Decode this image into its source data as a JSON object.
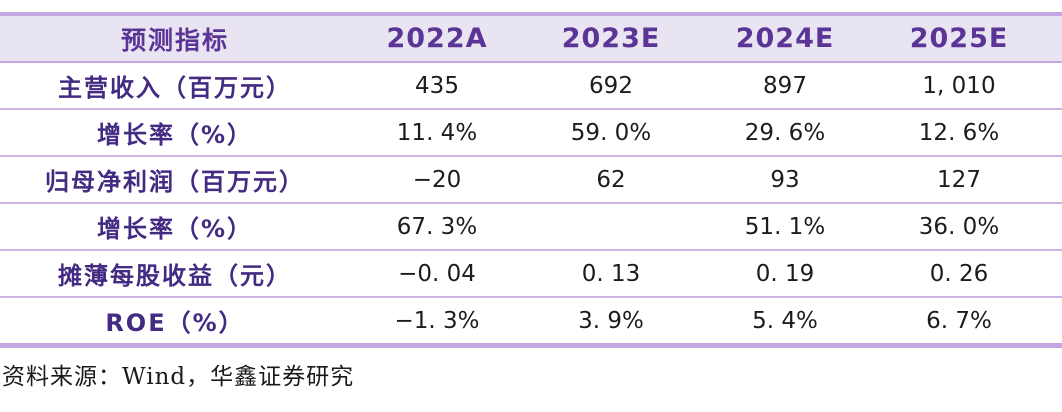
{
  "table": {
    "columns": [
      "预测指标",
      "2022A",
      "2023E",
      "2024E",
      "2025E"
    ],
    "rows": [
      {
        "label": "主营收入（百万元）",
        "values": [
          "435",
          "692",
          "897",
          "1, 010"
        ]
      },
      {
        "label": "增长率（%）",
        "values": [
          "11. 4%",
          "59. 0%",
          "29. 6%",
          "12. 6%"
        ]
      },
      {
        "label": "归母净利润（百万元）",
        "values": [
          "−20",
          "62",
          "93",
          "127"
        ]
      },
      {
        "label": "增长率（%）",
        "values": [
          "67. 3%",
          "",
          "51. 1%",
          "36. 0%"
        ]
      },
      {
        "label": "摊薄每股收益（元）",
        "values": [
          "−0. 04",
          "0. 13",
          "0. 19",
          "0. 26"
        ]
      },
      {
        "label": "ROE（%）",
        "values": [
          "−1. 3%",
          "3. 9%",
          "5. 4%",
          "6. 7%"
        ]
      }
    ]
  },
  "source": {
    "text": "资料来源：Wind，华鑫证券研究"
  },
  "colors": {
    "border": "#c5a6e0",
    "separator": "#cfb4e6",
    "header_bg": "#e9e4f2",
    "header_text": "#5b3596",
    "label_text": "#432a82",
    "value_text": "#1c1c1c",
    "source_text": "#1a1a1a"
  }
}
